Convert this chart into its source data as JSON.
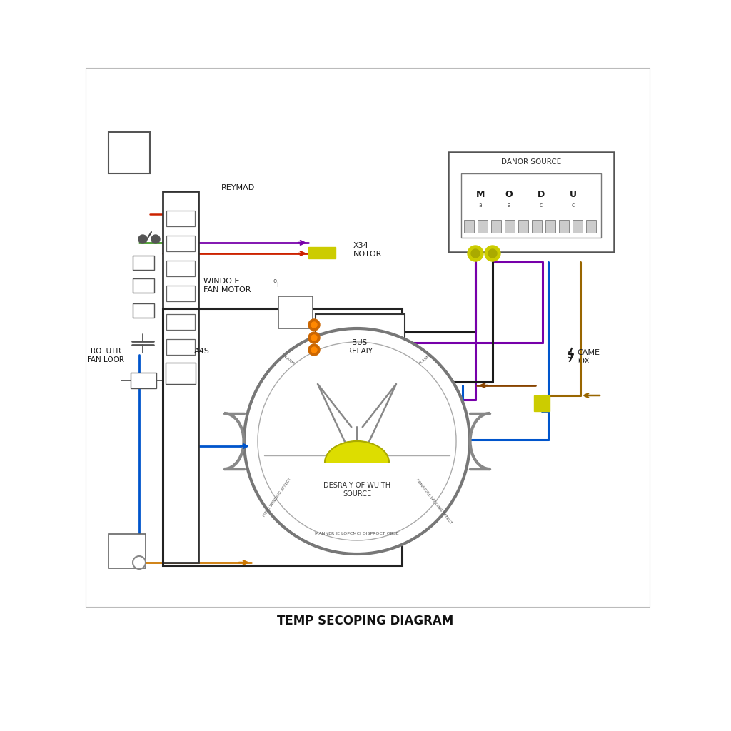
{
  "title": "TEMP SECOPING DIAGRAM",
  "bg_color": "#ffffff",
  "labels": {
    "reymad": "REYMAD",
    "windo_e_fan": "WINDO E\nFAN MOTOR",
    "x34_notor": "X34\nNOTOR",
    "rotutr_fan_loor": "ROTUTR\nFAN LOOR",
    "a4s": "A4S",
    "danor_source": "DANOR SOURCE",
    "modu": [
      "M",
      "O",
      "D",
      "U"
    ],
    "modu_sub": [
      "a",
      "a",
      "c",
      "c"
    ],
    "bus_relay": "BUS\nRELAIY",
    "came_iox": "CAME\nIOX",
    "desraiy": "DESRAIY OF WUITH\nSOURCE",
    "curved_bottom": "MANNER IE LOPCMCI DISPROCT ORSE"
  },
  "colors": {
    "red": "#cc2200",
    "blue": "#0055cc",
    "purple": "#7700aa",
    "black": "#1a1a1a",
    "green": "#228800",
    "orange": "#cc7700",
    "dark_orange": "#cc5500",
    "yellow": "#cccc00",
    "gray": "#888888",
    "light_gray": "#cccccc",
    "dark_gray": "#444444",
    "panel_edge": "#333333",
    "wire_brown": "#996600"
  }
}
